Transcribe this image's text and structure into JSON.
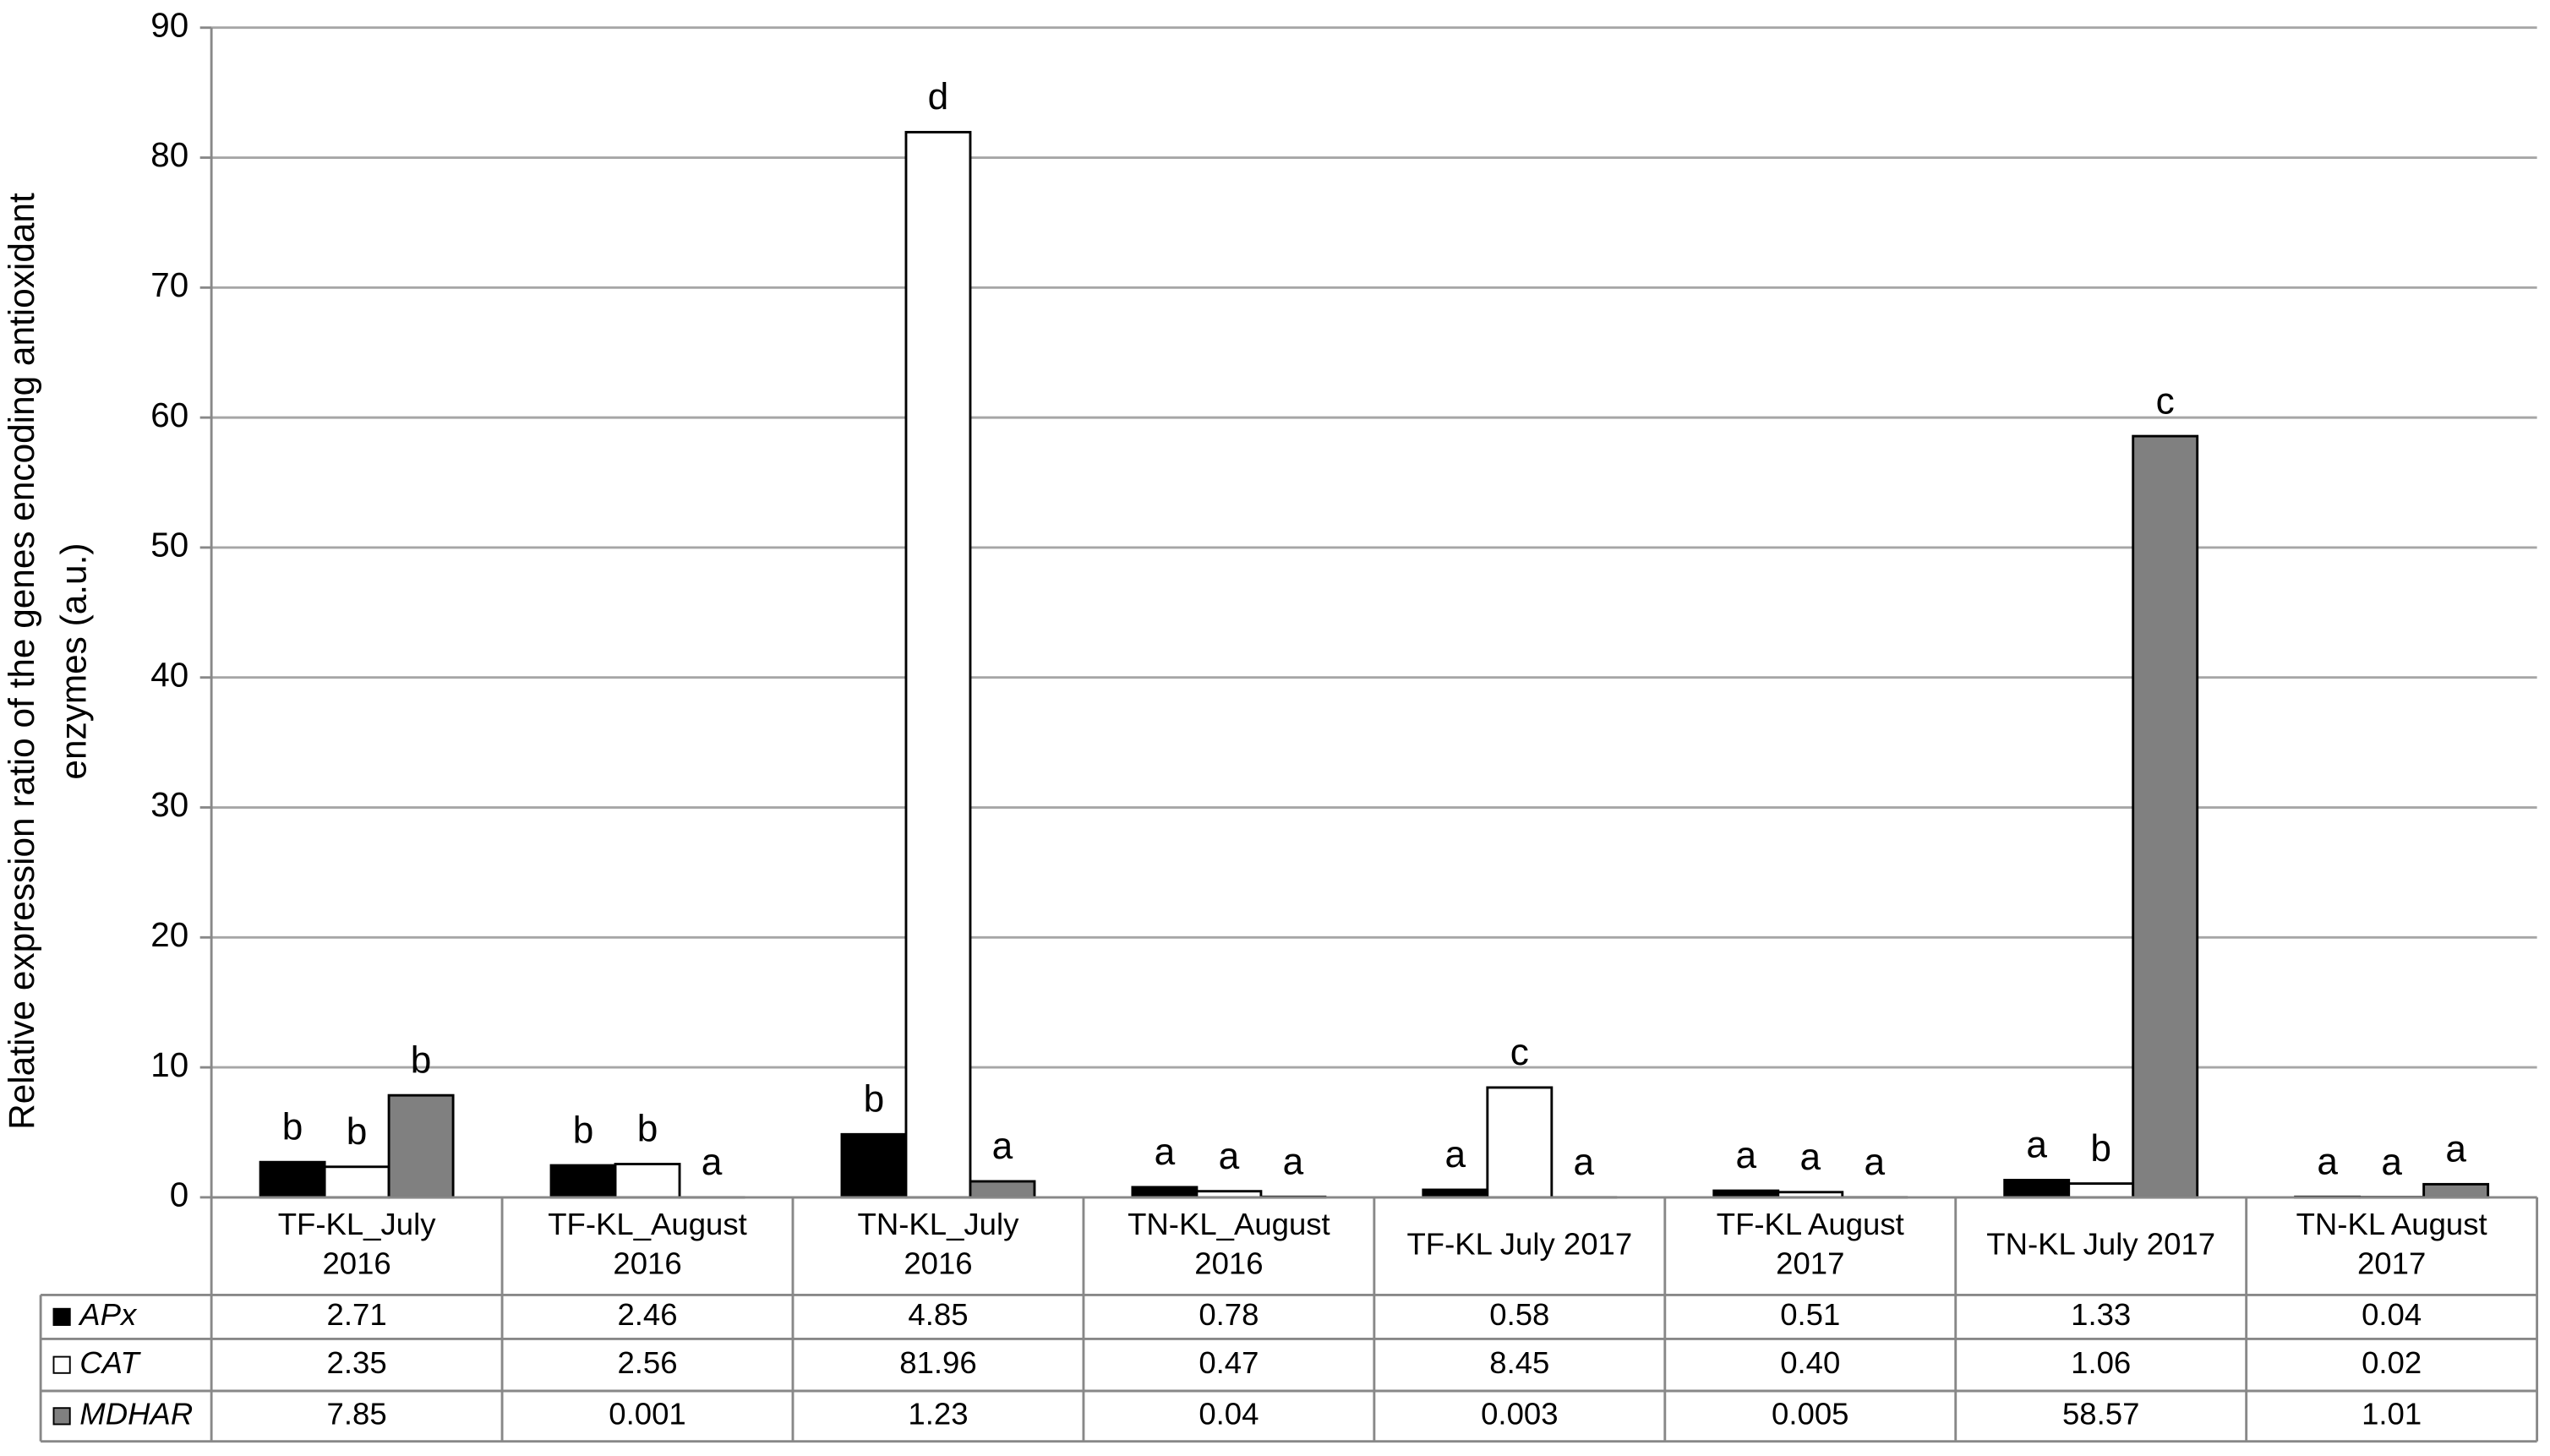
{
  "chart_data": {
    "type": "bar",
    "ylabel": [
      "Relative expression ratio of the genes encoding antioxidant",
      "enzymes (a.u.)"
    ],
    "categories": [
      [
        "TF-KL_July",
        "2016"
      ],
      [
        "TF-KL_August",
        "2016"
      ],
      [
        "TN-KL_July",
        "2016"
      ],
      [
        "TN-KL_August",
        "2016"
      ],
      [
        "TF-KL July 2017"
      ],
      [
        "TF-KL August",
        "2017"
      ],
      [
        "TN-KL July 2017"
      ],
      [
        "TN-KL August",
        "2017"
      ]
    ],
    "series": [
      {
        "name": "APx",
        "color": "#000000",
        "values": [
          2.71,
          2.46,
          4.85,
          0.78,
          0.58,
          0.51,
          1.33,
          0.04
        ],
        "value_labels": [
          "2.71",
          "2.46",
          "4.85",
          "0.78",
          "0.58",
          "0.51",
          "1.33",
          "0.04"
        ],
        "letters": [
          "b",
          "b",
          "b",
          "a",
          "a",
          "a",
          "a",
          "a"
        ]
      },
      {
        "name": "CAT",
        "color": "#ffffff",
        "values": [
          2.35,
          2.56,
          81.96,
          0.47,
          8.45,
          0.4,
          1.06,
          0.02
        ],
        "value_labels": [
          "2.35",
          "2.56",
          "81.96",
          "0.47",
          "8.45",
          "0.40",
          "1.06",
          "0.02"
        ],
        "letters": [
          "b",
          "b",
          "d",
          "a",
          "c",
          "a",
          "b",
          "a"
        ]
      },
      {
        "name": "MDHAR",
        "color": "#808080",
        "values": [
          7.85,
          0.001,
          1.23,
          0.04,
          0.003,
          0.005,
          58.57,
          1.01
        ],
        "value_labels": [
          "7.85",
          "0.001",
          "1.23",
          "0.04",
          "0.003",
          "0.005",
          "58.57",
          "1.01"
        ],
        "letters": [
          "b",
          "a",
          "a",
          "a",
          "a",
          "a",
          "c",
          "a"
        ]
      }
    ],
    "ylim": [
      0,
      90
    ],
    "yticks": [
      0,
      10,
      20,
      30,
      40,
      50,
      60,
      70,
      80,
      90
    ],
    "grid": true
  }
}
